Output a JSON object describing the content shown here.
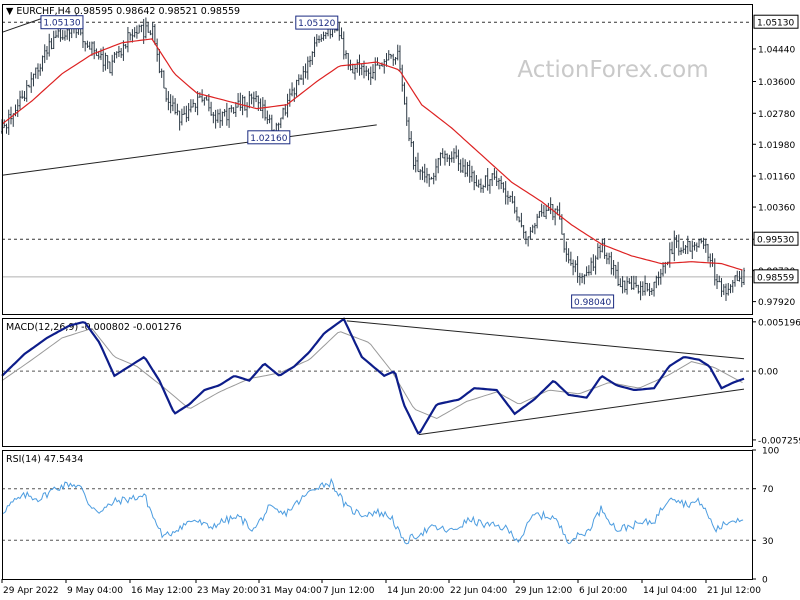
{
  "chart_data": {
    "type": "line",
    "watermark": "ActionForex.com",
    "x_axis": {
      "tick_labels": [
        "29 Apr 2022",
        "9 May 04:00",
        "16 May 12:00",
        "23 May 20:00",
        "31 May 04:00",
        "7 Jun 12:00",
        "14 Jun 20:00",
        "22 Jun 04:00",
        "29 Jun 12:00",
        "6 Jul 20:00",
        "14 Jul 04:00",
        "21 Jul 12:00"
      ],
      "bar_count": 480
    },
    "price_panel": {
      "header": "▼ EURCHF,H4  0.98595 0.98642 0.98521 0.98559",
      "ylim": [
        0.976,
        1.056
      ],
      "y_ticks": [
        "1.04440",
        "1.03600",
        "1.02780",
        "1.01980",
        "1.01160",
        "1.00360",
        "0.99530",
        "0.98720",
        "0.97920"
      ],
      "levels": [
        {
          "value": 1.0513,
          "label": "1.05130",
          "style": "dashed"
        },
        {
          "value": 0.9953,
          "label": "0.99530",
          "style": "dashed"
        },
        {
          "value": 0.98559,
          "label": "0.98559",
          "style": "current"
        }
      ],
      "annotations": [
        {
          "text": "1.05130",
          "x": 40,
          "y": 1.0513
        },
        {
          "text": "1.05120",
          "x": 210,
          "y": 1.0512
        },
        {
          "text": "1.02160",
          "x": 178,
          "y": 1.0216
        },
        {
          "text": "0.98040",
          "x": 394,
          "y": 0.9804
        }
      ],
      "trend_line": {
        "x": [
          0,
          250
        ],
        "y": [
          1.0118,
          1.0248
        ]
      },
      "top_line": {
        "x": [
          0,
          32
        ],
        "y": [
          1.0487,
          1.053
        ]
      },
      "price_keypoints": [
        {
          "x": 0,
          "y": 1.023
        },
        {
          "x": 10,
          "y": 1.029
        },
        {
          "x": 22,
          "y": 1.038
        },
        {
          "x": 35,
          "y": 1.047
        },
        {
          "x": 48,
          "y": 1.0505
        },
        {
          "x": 58,
          "y": 1.046
        },
        {
          "x": 72,
          "y": 1.04
        },
        {
          "x": 85,
          "y": 1.048
        },
        {
          "x": 100,
          "y": 1.05
        },
        {
          "x": 108,
          "y": 1.034
        },
        {
          "x": 118,
          "y": 1.026
        },
        {
          "x": 132,
          "y": 1.032
        },
        {
          "x": 145,
          "y": 1.0265
        },
        {
          "x": 160,
          "y": 1.03
        },
        {
          "x": 170,
          "y": 1.032
        },
        {
          "x": 180,
          "y": 1.0235
        },
        {
          "x": 190,
          "y": 1.03
        },
        {
          "x": 200,
          "y": 1.038
        },
        {
          "x": 212,
          "y": 1.048
        },
        {
          "x": 222,
          "y": 1.05
        },
        {
          "x": 232,
          "y": 1.04
        },
        {
          "x": 248,
          "y": 1.038
        },
        {
          "x": 258,
          "y": 1.044
        },
        {
          "x": 265,
          "y": 1.042
        },
        {
          "x": 270,
          "y": 1.025
        },
        {
          "x": 275,
          "y": 1.015
        },
        {
          "x": 285,
          "y": 1.011
        },
        {
          "x": 295,
          "y": 1.018
        },
        {
          "x": 305,
          "y": 1.015
        },
        {
          "x": 318,
          "y": 1.01
        },
        {
          "x": 330,
          "y": 1.011
        },
        {
          "x": 342,
          "y": 1.003
        },
        {
          "x": 350,
          "y": 0.996
        },
        {
          "x": 360,
          "y": 1.002
        },
        {
          "x": 370,
          "y": 1.003
        },
        {
          "x": 378,
          "y": 0.989
        },
        {
          "x": 388,
          "y": 0.986
        },
        {
          "x": 400,
          "y": 0.993
        },
        {
          "x": 412,
          "y": 0.984
        },
        {
          "x": 425,
          "y": 0.983
        },
        {
          "x": 438,
          "y": 0.984
        },
        {
          "x": 448,
          "y": 0.994
        },
        {
          "x": 458,
          "y": 0.993
        },
        {
          "x": 468,
          "y": 0.995
        },
        {
          "x": 474,
          "y": 0.988
        },
        {
          "x": 480,
          "y": 0.982
        },
        {
          "x": 488,
          "y": 0.984
        },
        {
          "x": 495,
          "y": 0.9856
        }
      ],
      "ma_keypoints": [
        {
          "x": 0,
          "y": 1.025
        },
        {
          "x": 20,
          "y": 1.031
        },
        {
          "x": 40,
          "y": 1.038
        },
        {
          "x": 60,
          "y": 1.043
        },
        {
          "x": 80,
          "y": 1.046
        },
        {
          "x": 100,
          "y": 1.047
        },
        {
          "x": 115,
          "y": 1.038
        },
        {
          "x": 130,
          "y": 1.033
        },
        {
          "x": 150,
          "y": 1.031
        },
        {
          "x": 170,
          "y": 1.029
        },
        {
          "x": 190,
          "y": 1.03
        },
        {
          "x": 210,
          "y": 1.036
        },
        {
          "x": 225,
          "y": 1.04
        },
        {
          "x": 250,
          "y": 1.041
        },
        {
          "x": 265,
          "y": 1.039
        },
        {
          "x": 280,
          "y": 1.03
        },
        {
          "x": 300,
          "y": 1.024
        },
        {
          "x": 320,
          "y": 1.017
        },
        {
          "x": 340,
          "y": 1.01
        },
        {
          "x": 360,
          "y": 1.005
        },
        {
          "x": 380,
          "y": 0.999
        },
        {
          "x": 400,
          "y": 0.994
        },
        {
          "x": 420,
          "y": 0.991
        },
        {
          "x": 440,
          "y": 0.989
        },
        {
          "x": 460,
          "y": 0.9895
        },
        {
          "x": 480,
          "y": 0.989
        },
        {
          "x": 495,
          "y": 0.9872
        }
      ]
    },
    "macd_panel": {
      "header": "MACD(12,26,9) -0.000802 -0.001276",
      "ylim": [
        -0.0079,
        0.0056
      ],
      "y_ticks": [
        "0.005196",
        "0.00",
        "-0.007259"
      ],
      "zero_line": 0,
      "trend_lines": [
        {
          "x": [
            230,
            495
          ],
          "y": [
            0.0053,
            0.0013
          ]
        },
        {
          "x": [
            278,
            495
          ],
          "y": [
            -0.0067,
            -0.0019
          ]
        }
      ],
      "macd_keypoints": [
        {
          "x": 0,
          "y": -0.0005
        },
        {
          "x": 15,
          "y": 0.0018
        },
        {
          "x": 30,
          "y": 0.0035
        },
        {
          "x": 45,
          "y": 0.0048
        },
        {
          "x": 55,
          "y": 0.0052
        },
        {
          "x": 65,
          "y": 0.003
        },
        {
          "x": 75,
          "y": -0.0005
        },
        {
          "x": 85,
          "y": 0.0005
        },
        {
          "x": 95,
          "y": 0.0015
        },
        {
          "x": 105,
          "y": -0.001
        },
        {
          "x": 115,
          "y": -0.0045
        },
        {
          "x": 125,
          "y": -0.0035
        },
        {
          "x": 135,
          "y": -0.002
        },
        {
          "x": 145,
          "y": -0.0015
        },
        {
          "x": 155,
          "y": -0.0005
        },
        {
          "x": 165,
          "y": -0.001
        },
        {
          "x": 175,
          "y": 0.0008
        },
        {
          "x": 185,
          "y": -0.0005
        },
        {
          "x": 195,
          "y": 0.0005
        },
        {
          "x": 205,
          "y": 0.002
        },
        {
          "x": 215,
          "y": 0.004
        },
        {
          "x": 228,
          "y": 0.0055
        },
        {
          "x": 240,
          "y": 0.0015
        },
        {
          "x": 255,
          "y": -0.0005
        },
        {
          "x": 262,
          "y": 0.0
        },
        {
          "x": 268,
          "y": -0.0035
        },
        {
          "x": 278,
          "y": -0.0067
        },
        {
          "x": 290,
          "y": -0.0035
        },
        {
          "x": 305,
          "y": -0.003
        },
        {
          "x": 315,
          "y": -0.0018
        },
        {
          "x": 330,
          "y": -0.002
        },
        {
          "x": 342,
          "y": -0.0045
        },
        {
          "x": 355,
          "y": -0.003
        },
        {
          "x": 368,
          "y": -0.001
        },
        {
          "x": 378,
          "y": -0.0025
        },
        {
          "x": 390,
          "y": -0.0028
        },
        {
          "x": 400,
          "y": -0.0005
        },
        {
          "x": 410,
          "y": -0.0015
        },
        {
          "x": 422,
          "y": -0.002
        },
        {
          "x": 435,
          "y": -0.0018
        },
        {
          "x": 445,
          "y": 0.0005
        },
        {
          "x": 455,
          "y": 0.0015
        },
        {
          "x": 465,
          "y": 0.0012
        },
        {
          "x": 472,
          "y": 0.0005
        },
        {
          "x": 480,
          "y": -0.0018
        },
        {
          "x": 488,
          "y": -0.0012
        },
        {
          "x": 495,
          "y": -0.0008
        }
      ],
      "signal_keypoints": [
        {
          "x": 0,
          "y": -0.001
        },
        {
          "x": 20,
          "y": 0.0012
        },
        {
          "x": 40,
          "y": 0.0035
        },
        {
          "x": 60,
          "y": 0.0045
        },
        {
          "x": 75,
          "y": 0.0015
        },
        {
          "x": 90,
          "y": 0.0005
        },
        {
          "x": 110,
          "y": -0.002
        },
        {
          "x": 125,
          "y": -0.004
        },
        {
          "x": 145,
          "y": -0.0022
        },
        {
          "x": 165,
          "y": -0.0008
        },
        {
          "x": 185,
          "y": -0.0002
        },
        {
          "x": 205,
          "y": 0.0012
        },
        {
          "x": 225,
          "y": 0.0042
        },
        {
          "x": 245,
          "y": 0.003
        },
        {
          "x": 260,
          "y": 0.0
        },
        {
          "x": 275,
          "y": -0.004
        },
        {
          "x": 290,
          "y": -0.005
        },
        {
          "x": 310,
          "y": -0.0032
        },
        {
          "x": 330,
          "y": -0.0022
        },
        {
          "x": 345,
          "y": -0.0035
        },
        {
          "x": 365,
          "y": -0.002
        },
        {
          "x": 385,
          "y": -0.0024
        },
        {
          "x": 405,
          "y": -0.0012
        },
        {
          "x": 425,
          "y": -0.0018
        },
        {
          "x": 445,
          "y": -0.0004
        },
        {
          "x": 460,
          "y": 0.001
        },
        {
          "x": 475,
          "y": 0.0004
        },
        {
          "x": 495,
          "y": -0.0013
        }
      ]
    },
    "rsi_panel": {
      "header": "RSI(14) 47.5434",
      "ylim": [
        0,
        100
      ],
      "y_ticks": [
        100,
        70,
        30,
        0
      ],
      "levels": [
        70,
        30
      ],
      "rsi_keypoints": [
        {
          "x": 0,
          "y": 52
        },
        {
          "x": 8,
          "y": 60
        },
        {
          "x": 16,
          "y": 65
        },
        {
          "x": 25,
          "y": 62
        },
        {
          "x": 35,
          "y": 70
        },
        {
          "x": 45,
          "y": 74
        },
        {
          "x": 52,
          "y": 72
        },
        {
          "x": 58,
          "y": 58
        },
        {
          "x": 66,
          "y": 52
        },
        {
          "x": 75,
          "y": 60
        },
        {
          "x": 85,
          "y": 62
        },
        {
          "x": 95,
          "y": 65
        },
        {
          "x": 102,
          "y": 45
        },
        {
          "x": 108,
          "y": 32
        },
        {
          "x": 118,
          "y": 40
        },
        {
          "x": 128,
          "y": 46
        },
        {
          "x": 138,
          "y": 40
        },
        {
          "x": 148,
          "y": 45
        },
        {
          "x": 158,
          "y": 48
        },
        {
          "x": 168,
          "y": 38
        },
        {
          "x": 178,
          "y": 55
        },
        {
          "x": 188,
          "y": 50
        },
        {
          "x": 198,
          "y": 60
        },
        {
          "x": 210,
          "y": 72
        },
        {
          "x": 220,
          "y": 75
        },
        {
          "x": 230,
          "y": 55
        },
        {
          "x": 240,
          "y": 50
        },
        {
          "x": 250,
          "y": 52
        },
        {
          "x": 260,
          "y": 48
        },
        {
          "x": 268,
          "y": 28
        },
        {
          "x": 278,
          "y": 35
        },
        {
          "x": 288,
          "y": 40
        },
        {
          "x": 300,
          "y": 37
        },
        {
          "x": 312,
          "y": 46
        },
        {
          "x": 322,
          "y": 42
        },
        {
          "x": 335,
          "y": 40
        },
        {
          "x": 345,
          "y": 30
        },
        {
          "x": 355,
          "y": 50
        },
        {
          "x": 368,
          "y": 48
        },
        {
          "x": 378,
          "y": 30
        },
        {
          "x": 390,
          "y": 36
        },
        {
          "x": 400,
          "y": 55
        },
        {
          "x": 410,
          "y": 38
        },
        {
          "x": 422,
          "y": 42
        },
        {
          "x": 435,
          "y": 45
        },
        {
          "x": 446,
          "y": 65
        },
        {
          "x": 456,
          "y": 58
        },
        {
          "x": 466,
          "y": 60
        },
        {
          "x": 476,
          "y": 38
        },
        {
          "x": 486,
          "y": 45
        },
        {
          "x": 495,
          "y": 47.5
        }
      ]
    },
    "colors": {
      "price_bars": "#2d3a45",
      "ma": "#dd2222",
      "macd": "#0d1d8a",
      "signal": "#9a9a9a",
      "rsi": "#4d9de0",
      "watermark": "#c9c9c9",
      "grid": "#888888"
    }
  }
}
